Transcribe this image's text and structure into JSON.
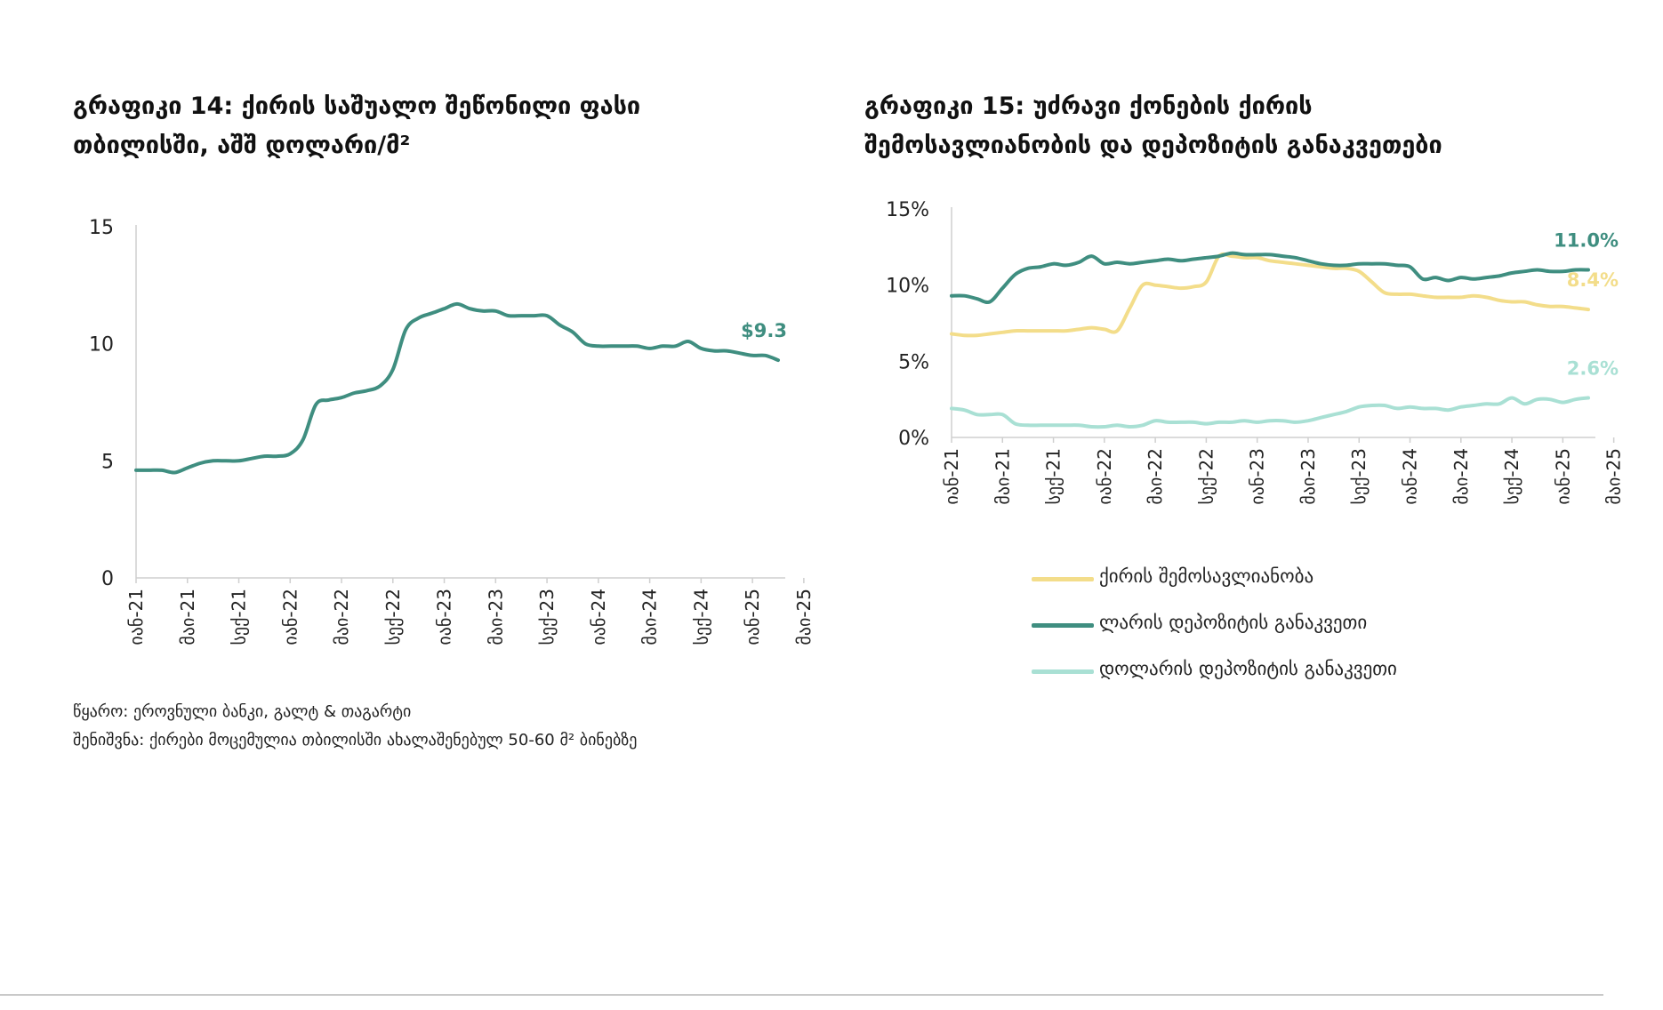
{
  "colors": {
    "teal": "#3f8e80",
    "yellow": "#f3dd8a",
    "light_teal": "#a9e0d4",
    "axis": "#cfcfcf",
    "tick": "#222222"
  },
  "chart14": {
    "title_line1": "გრაფიკი 14: ქირის საშუალო შეწონილი ფასი",
    "title_line2": "თბილისში, აშშ დოლარი/მ²"
  },
  "chart15": {
    "title_line1": "გრაფიკი 15: უძრავი ქონების ქირის",
    "title_line2": "შემოსავლიანობის და დეპოზიტის განაკვეთები"
  },
  "source_text": "წყარო: ეროვნული ბანკი, გალტ & თაგარტი",
  "note_text": "შენიშვნა: ქირები მოცემულია თბილისში ახალაშენებულ 50-60 მ² ბინებზე",
  "chart_data": [
    {
      "type": "line",
      "title": "გრაფიკი 14: ქირის საშუალო შეწონილი ფასი თბილისში, აშშ დოლარი/მ²",
      "x_tick_labels": [
        "იან-21",
        "მაი-21",
        "სექ-21",
        "იან-22",
        "მაი-22",
        "სექ-22",
        "იან-23",
        "მაი-23",
        "სექ-23",
        "იან-24",
        "მაი-24",
        "სექ-24",
        "იან-25",
        "მაი-25"
      ],
      "y_ticks": [
        0,
        5,
        10,
        15
      ],
      "ylim": [
        0,
        15
      ],
      "grid": false,
      "end_label": "$9.3",
      "series": [
        {
          "color": "#3f8e80",
          "values": [
            4.6,
            4.6,
            4.6,
            4.5,
            4.7,
            4.9,
            5.0,
            5.0,
            5.0,
            5.1,
            5.2,
            5.2,
            5.3,
            5.9,
            7.4,
            7.6,
            7.7,
            7.9,
            8.0,
            8.2,
            8.9,
            10.6,
            11.1,
            11.3,
            11.5,
            11.7,
            11.5,
            11.4,
            11.4,
            11.2,
            11.2,
            11.2,
            11.2,
            10.8,
            10.5,
            10.0,
            9.9,
            9.9,
            9.9,
            9.9,
            9.8,
            9.9,
            9.9,
            10.1,
            9.8,
            9.7,
            9.7,
            9.6,
            9.5,
            9.5,
            9.3
          ]
        }
      ]
    },
    {
      "type": "line",
      "title": "გრაფიკი 15: უძრავი ქონების ქირის შემოსავლიანობის და დეპოზიტის განაკვეთები",
      "x_tick_labels": [
        "იან-21",
        "მაი-21",
        "სექ-21",
        "იან-22",
        "მაი-22",
        "სექ-22",
        "იან-23",
        "მაი-23",
        "სექ-23",
        "იან-24",
        "მაი-24",
        "სექ-24",
        "იან-25",
        "მაი-25"
      ],
      "y_ticks": [
        "0%",
        "5%",
        "10%",
        "15%"
      ],
      "ylim": [
        0,
        15
      ],
      "grid": false,
      "legend_position": "bottom",
      "series": [
        {
          "name": "ქირის შემოსავლიანობა",
          "color": "#f3dd8a",
          "end_label": "8.4%",
          "values": [
            6.8,
            6.7,
            6.7,
            6.8,
            6.9,
            7.0,
            7.0,
            7.0,
            7.0,
            7.0,
            7.1,
            7.2,
            7.1,
            7.0,
            8.5,
            10.0,
            10.0,
            9.9,
            9.8,
            9.9,
            10.2,
            11.9,
            11.9,
            11.8,
            11.8,
            11.6,
            11.5,
            11.4,
            11.3,
            11.2,
            11.1,
            11.1,
            10.9,
            10.2,
            9.5,
            9.4,
            9.4,
            9.3,
            9.2,
            9.2,
            9.2,
            9.3,
            9.2,
            9.0,
            8.9,
            8.9,
            8.7,
            8.6,
            8.6,
            8.5,
            8.4
          ]
        },
        {
          "name": "ლარის დეპოზიტის განაკვეთი",
          "color": "#3f8e80",
          "end_label": "11.0%",
          "values": [
            9.3,
            9.3,
            9.1,
            8.9,
            9.8,
            10.7,
            11.1,
            11.2,
            11.4,
            11.3,
            11.5,
            11.9,
            11.4,
            11.5,
            11.4,
            11.5,
            11.6,
            11.7,
            11.6,
            11.7,
            11.8,
            11.9,
            12.1,
            12.0,
            12.0,
            12.0,
            11.9,
            11.8,
            11.6,
            11.4,
            11.3,
            11.3,
            11.4,
            11.4,
            11.4,
            11.3,
            11.2,
            10.4,
            10.5,
            10.3,
            10.5,
            10.4,
            10.5,
            10.6,
            10.8,
            10.9,
            11.0,
            10.9,
            10.9,
            11.0,
            11.0
          ]
        },
        {
          "name": "დოლარის დეპოზიტის განაკვეთი",
          "color": "#a9e0d4",
          "end_label": "2.6%",
          "values": [
            1.9,
            1.8,
            1.5,
            1.5,
            1.5,
            0.9,
            0.8,
            0.8,
            0.8,
            0.8,
            0.8,
            0.7,
            0.7,
            0.8,
            0.7,
            0.8,
            1.1,
            1.0,
            1.0,
            1.0,
            0.9,
            1.0,
            1.0,
            1.1,
            1.0,
            1.1,
            1.1,
            1.0,
            1.1,
            1.3,
            1.5,
            1.7,
            2.0,
            2.1,
            2.1,
            1.9,
            2.0,
            1.9,
            1.9,
            1.8,
            2.0,
            2.1,
            2.2,
            2.2,
            2.6,
            2.2,
            2.5,
            2.5,
            2.3,
            2.5,
            2.6
          ]
        }
      ]
    }
  ]
}
